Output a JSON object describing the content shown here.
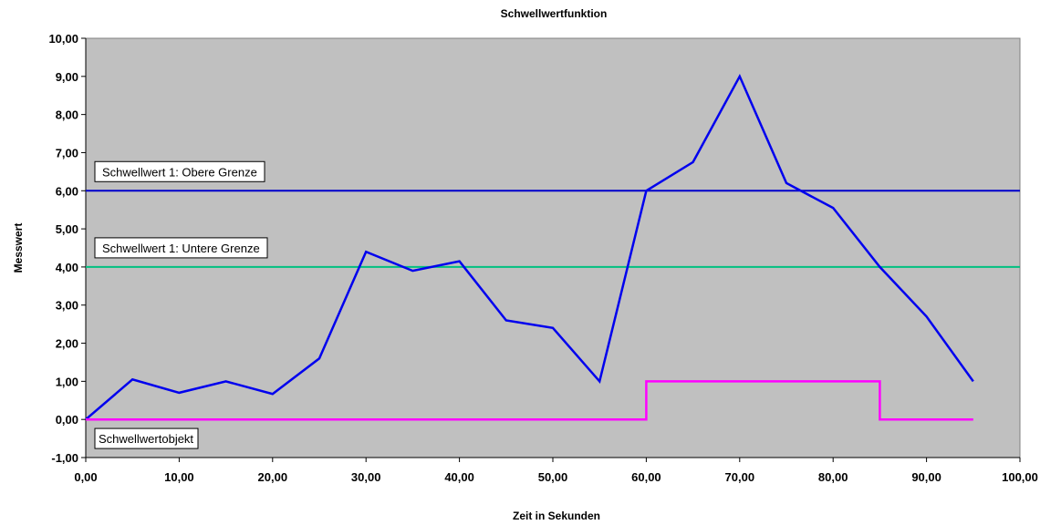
{
  "chart_data": {
    "type": "line",
    "title": "Schwellwertfunktion",
    "xlabel": "Zeit in Sekunden",
    "ylabel": "Messwert",
    "xlim": [
      0,
      100
    ],
    "ylim": [
      -1,
      10
    ],
    "x_ticks": [
      "0,00",
      "10,00",
      "20,00",
      "30,00",
      "40,00",
      "50,00",
      "60,00",
      "70,00",
      "80,00",
      "90,00",
      "100,00"
    ],
    "y_ticks": [
      "-1,00",
      "0,00",
      "1,00",
      "2,00",
      "3,00",
      "4,00",
      "5,00",
      "6,00",
      "7,00",
      "8,00",
      "9,00",
      "10,00"
    ],
    "grid": false,
    "legend": "none",
    "plot_background": "#c0c0c0",
    "series": [
      {
        "color": "#0000ee",
        "x": [
          0,
          5,
          10,
          15,
          20,
          25,
          30,
          35,
          40,
          45,
          50,
          55,
          60,
          65,
          70,
          75,
          80,
          85,
          90,
          95
        ],
        "y": [
          0,
          1.05,
          0.7,
          1.0,
          0.67,
          1.6,
          4.4,
          3.9,
          4.15,
          2.6,
          2.4,
          1.0,
          6.0,
          6.75,
          9.0,
          6.2,
          5.55,
          4.0,
          2.7,
          1.0
        ]
      },
      {
        "color": "#ff00ff",
        "step": true,
        "x": [
          0,
          60,
          60,
          85,
          85,
          95
        ],
        "y": [
          0,
          0,
          1,
          1,
          0,
          0
        ]
      }
    ],
    "threshold_lines": [
      {
        "y": 6.0,
        "color": "#0000cc",
        "label": "Schwellwert 1: Obere Grenze"
      },
      {
        "y": 4.0,
        "color": "#00c080",
        "label": "Schwellwert 1: Untere Grenze"
      }
    ],
    "annotations": [
      {
        "text": "Schwellwertobjekt",
        "y": -0.5
      }
    ]
  }
}
